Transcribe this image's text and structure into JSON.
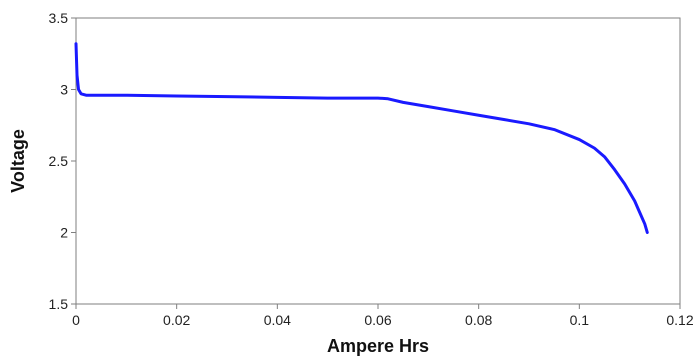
{
  "chart_data": {
    "type": "line",
    "title": "",
    "xlabel": "Ampere Hrs",
    "ylabel": "Voltage",
    "xlim": [
      0,
      0.12
    ],
    "ylim": [
      1.5,
      3.5
    ],
    "x_ticks": [
      "0",
      "0.02",
      "0.04",
      "0.06",
      "0.08",
      "0.1",
      "0.12"
    ],
    "y_ticks": [
      "1.5",
      "2",
      "2.5",
      "3",
      "3.5"
    ],
    "grid": true,
    "legend": "none",
    "series": [
      {
        "color": "#1a1aff",
        "x": [
          0,
          0.0002,
          0.0005,
          0.001,
          0.002,
          0.005,
          0.01,
          0.02,
          0.03,
          0.04,
          0.05,
          0.055,
          0.06,
          0.062,
          0.065,
          0.07,
          0.075,
          0.08,
          0.085,
          0.09,
          0.095,
          0.1,
          0.103,
          0.105,
          0.107,
          0.109,
          0.111,
          0.112,
          0.113,
          0.1135
        ],
        "y": [
          3.32,
          3.1,
          3.0,
          2.97,
          2.96,
          2.96,
          2.96,
          2.955,
          2.95,
          2.945,
          2.94,
          2.94,
          2.94,
          2.935,
          2.91,
          2.88,
          2.85,
          2.82,
          2.79,
          2.76,
          2.72,
          2.65,
          2.59,
          2.53,
          2.44,
          2.34,
          2.22,
          2.14,
          2.06,
          2.0
        ]
      }
    ]
  }
}
